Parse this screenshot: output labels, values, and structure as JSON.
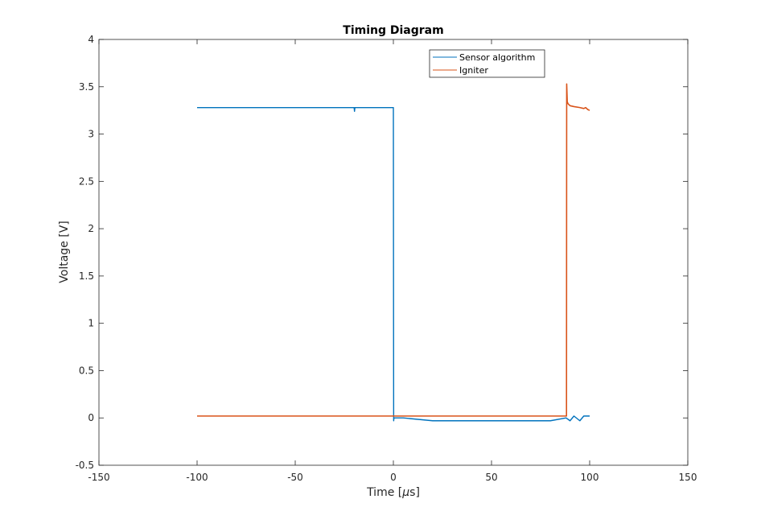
{
  "chart_data": {
    "type": "line",
    "title": "Timing Diagram",
    "xlabel_prefix": "Time [",
    "xlabel_mu": "μ",
    "xlabel_suffix": "s]",
    "ylabel": "Voltage [V]",
    "xlim": [
      -150,
      150
    ],
    "ylim": [
      -0.5,
      4
    ],
    "xticks": [
      -150,
      -100,
      -50,
      0,
      50,
      100,
      150
    ],
    "xtick_labels": [
      "-150",
      "-100",
      "-50",
      "0",
      "50",
      "100",
      "150"
    ],
    "yticks": [
      -0.5,
      0,
      0.5,
      1,
      1.5,
      2,
      2.5,
      3,
      3.5,
      4
    ],
    "ytick_labels": [
      "-0.5",
      "0",
      "0.5",
      "1",
      "1.5",
      "2",
      "2.5",
      "3",
      "3.5",
      "4"
    ],
    "grid": false,
    "legend_position": "top-right",
    "series": [
      {
        "name": "Sensor algorithm",
        "color": "#0072BD",
        "x": [
          -100,
          -20,
          -19.8,
          -19.6,
          -0.2,
          0.0,
          0.1,
          0.15,
          0.3,
          5,
          20,
          30,
          40,
          50,
          60,
          70,
          80,
          88,
          90,
          92,
          95,
          97,
          100
        ],
        "y": [
          3.28,
          3.28,
          3.24,
          3.28,
          3.28,
          3.28,
          1.05,
          -0.03,
          0.0,
          0.0,
          -0.03,
          -0.03,
          -0.03,
          -0.03,
          -0.03,
          -0.03,
          -0.03,
          0.0,
          -0.03,
          0.02,
          -0.03,
          0.02,
          0.02
        ]
      },
      {
        "name": "Igniter",
        "color": "#D95319",
        "x": [
          -100,
          -50,
          0,
          5,
          50,
          88.2,
          88.3,
          88.6,
          89,
          90,
          92,
          95,
          97,
          98,
          99,
          100
        ],
        "y": [
          0.02,
          0.02,
          0.02,
          0.02,
          0.02,
          0.02,
          3.53,
          3.34,
          3.32,
          3.3,
          3.29,
          3.28,
          3.27,
          3.28,
          3.26,
          3.25
        ]
      }
    ]
  }
}
